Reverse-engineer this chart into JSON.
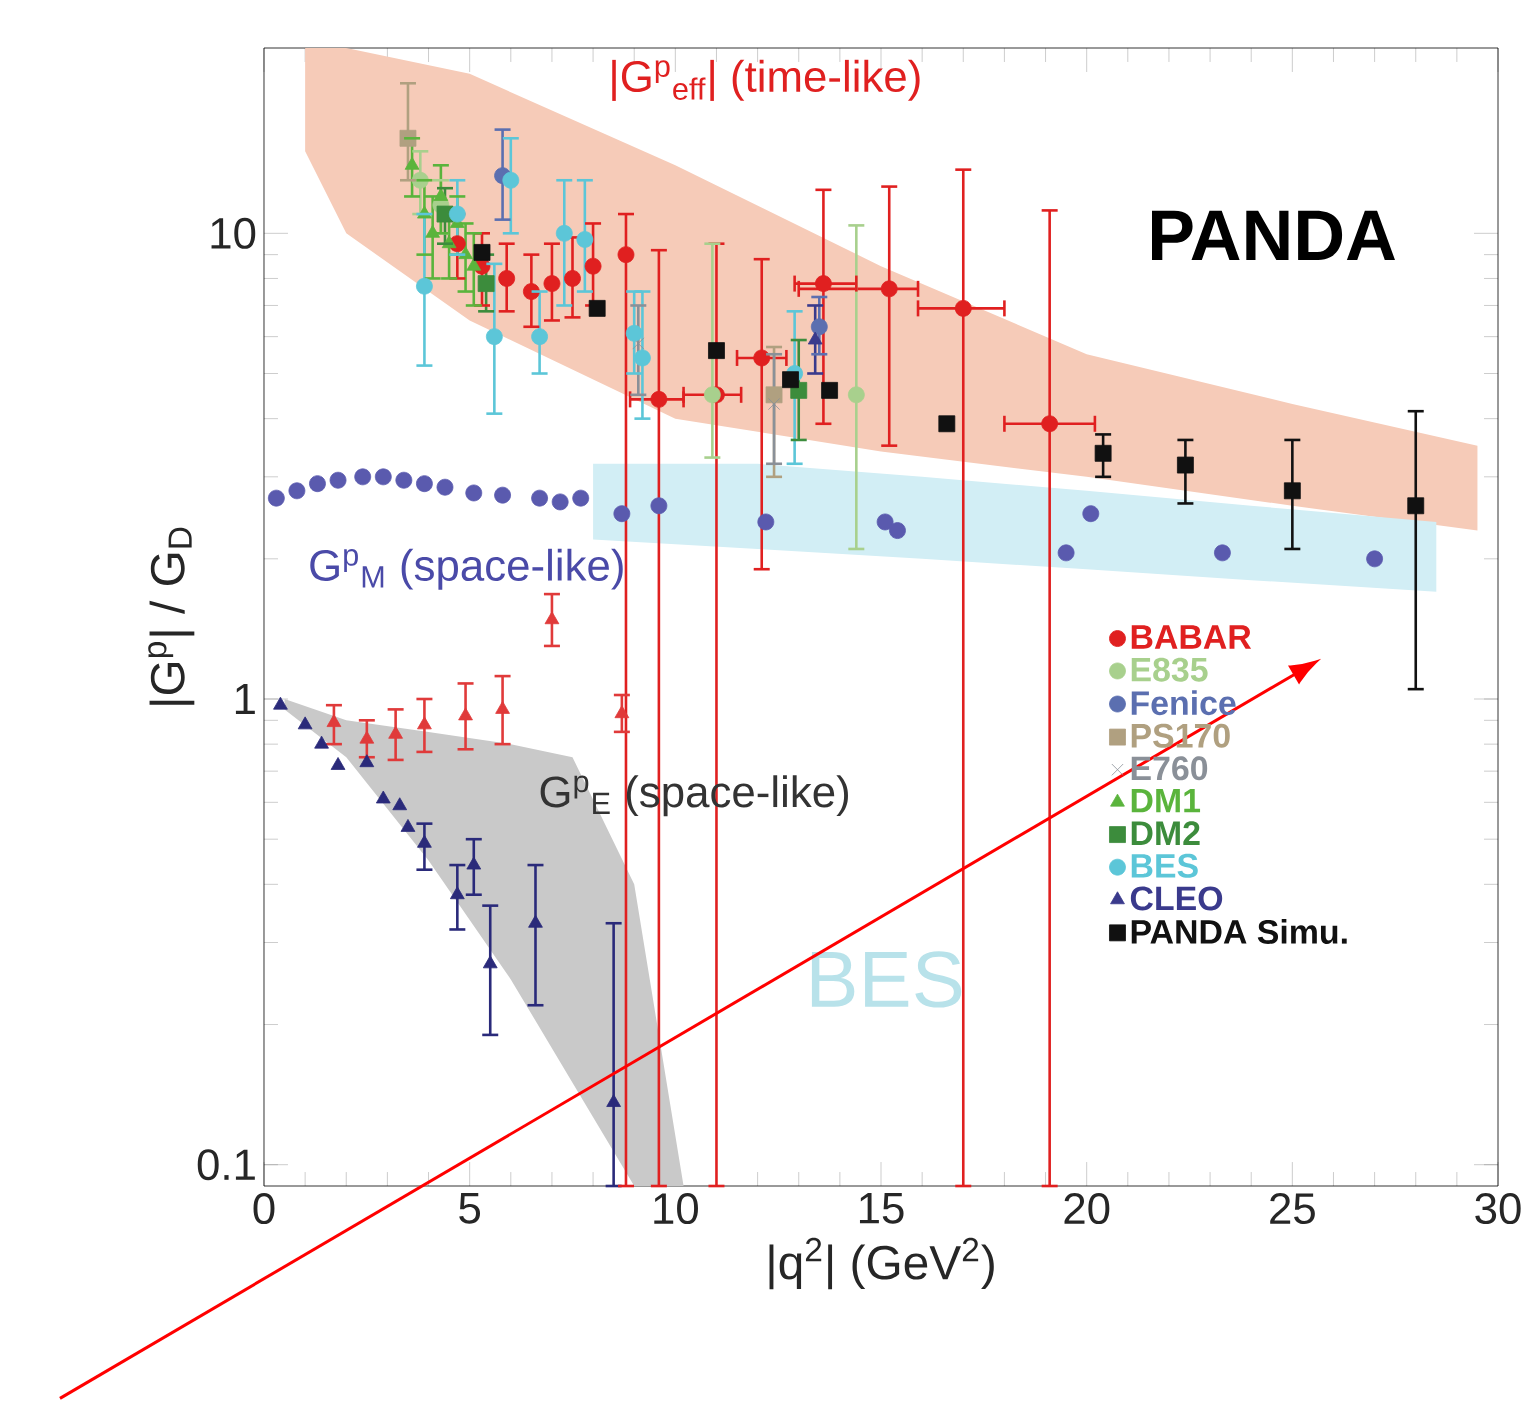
{
  "chart_data": {
    "type": "scatter",
    "xlabel": "|q$^{2}$| (GeV$^{2}$)",
    "ylabel": "|G$^{p}$| / G$_{D}$",
    "log": "y",
    "xlim": [
      0,
      30
    ],
    "ylim": [
      0.09,
      25
    ],
    "xticks": [
      0,
      5,
      10,
      15,
      20,
      25,
      30
    ],
    "yticks": [
      0.1,
      1,
      10
    ],
    "legend": "right",
    "annotations": [
      "|G$^{p}$$_{eff}$| (time-like)",
      "G$^{p}$$_{M}$ (space-like)",
      "G$^{p}$$_{E}$ (space-like)",
      "PANDA",
      "BES"
    ],
    "series": [
      {
        "type": "area",
        "color": "#f6cbb8",
        "x": [
          1,
          2,
          5,
          10,
          15,
          20,
          25,
          29.5
        ],
        "values": [
          null,
          null,
          null,
          null,
          null,
          null,
          null,
          null
        ],
        "upper": [
          25,
          25,
          22,
          14,
          8.5,
          5.5,
          4.3,
          3.5
        ],
        "lower": [
          15,
          10,
          6.5,
          4,
          3.4,
          3.0,
          2.6,
          2.3
        ]
      },
      {
        "type": "area",
        "color": "#d2eef5",
        "x": [
          8,
          12,
          16,
          20,
          24,
          28.5
        ],
        "values": [
          null,
          null,
          null,
          null,
          null,
          null
        ],
        "upper": [
          3.2,
          3.2,
          3.0,
          2.8,
          2.6,
          2.4
        ],
        "lower": [
          2.2,
          2.1,
          2.0,
          1.9,
          1.8,
          1.7
        ]
      },
      {
        "type": "area",
        "color": "#c9c9c9",
        "x": [
          0.5,
          2,
          4,
          6,
          7.5,
          9,
          10.2
        ],
        "values": [
          null,
          null,
          null,
          null,
          null,
          null,
          null
        ],
        "upper": [
          1.0,
          0.9,
          0.85,
          0.8,
          0.75,
          0.4,
          0.09
        ],
        "lower": [
          0.95,
          0.75,
          0.45,
          0.25,
          0.15,
          0.09,
          0.09
        ]
      },
      {
        "color": "#5a5aae",
        "marker": "circle",
        "x": [
          0.3,
          0.8,
          1.3,
          1.8,
          2.4,
          2.9,
          3.4,
          3.9,
          4.4,
          5.1,
          5.8,
          6.7,
          7.2,
          7.7,
          8.7,
          9.6,
          12.2,
          15.1,
          15.4,
          19.5,
          20.1,
          23.3,
          27.0
        ],
        "values": [
          2.7,
          2.8,
          2.9,
          2.95,
          3.0,
          3.0,
          2.95,
          2.9,
          2.85,
          2.77,
          2.74,
          2.7,
          2.65,
          2.7,
          2.5,
          2.6,
          2.4,
          2.4,
          2.3,
          2.06,
          2.5,
          2.06,
          2.0
        ]
      },
      {
        "color": "#e03a3a",
        "marker": "triangle",
        "x": [
          1.7,
          2.5,
          3.2,
          3.9,
          4.9,
          5.8,
          7.0,
          8.7
        ],
        "values": [
          0.89,
          0.82,
          0.84,
          0.88,
          0.92,
          0.95,
          1.48,
          0.93
        ],
        "errors": [
          [
            0.8,
            0.97
          ],
          [
            0.75,
            0.9
          ],
          [
            0.74,
            0.95
          ],
          [
            0.77,
            1.0
          ],
          [
            0.78,
            1.08
          ],
          [
            0.8,
            1.12
          ],
          [
            1.3,
            1.68
          ],
          [
            0.85,
            1.02
          ]
        ]
      },
      {
        "color": "#2a2a7a",
        "marker": "triangle",
        "x": [
          0.4,
          1.0,
          1.4,
          1.8,
          2.5,
          2.9,
          3.3,
          3.5,
          3.9,
          4.7,
          5.1,
          5.5,
          6.6,
          8.5
        ],
        "values": [
          0.97,
          0.88,
          0.8,
          0.72,
          0.73,
          0.61,
          0.59,
          0.53,
          0.49,
          0.38,
          0.44,
          0.27,
          0.33,
          0.136
        ],
        "errors": [
          null,
          null,
          null,
          null,
          null,
          null,
          null,
          null,
          [
            0.43,
            0.54
          ],
          [
            0.32,
            0.44
          ],
          [
            0.38,
            0.5
          ],
          [
            0.19,
            0.36
          ],
          [
            0.22,
            0.44
          ],
          [
            0.09,
            0.33
          ]
        ]
      },
      {
        "name": "BABAR",
        "color": "#e02020",
        "marker": "circle",
        "x": [
          4.7,
          5.3,
          5.9,
          6.5,
          7.0,
          7.5,
          8.0,
          8.8,
          9.6,
          11.0,
          12.1,
          13.6,
          15.2,
          17.0,
          19.1
        ],
        "values": [
          9.5,
          8.5,
          8.0,
          7.5,
          7.8,
          8.0,
          8.5,
          9.0,
          4.4,
          4.5,
          5.4,
          7.8,
          7.6,
          6.9,
          3.9
        ],
        "errors": [
          [
            8,
            11
          ],
          [
            7,
            10
          ],
          [
            6.8,
            9.5
          ],
          [
            6.3,
            9
          ],
          [
            6.5,
            9.5
          ],
          [
            6.6,
            9.8
          ],
          [
            7,
            10.5
          ],
          [
            0.09,
            11
          ],
          [
            0.09,
            9.2
          ],
          [
            0.09,
            9.5
          ],
          [
            1.9,
            8.8
          ],
          [
            3.9,
            12.4
          ],
          [
            3.5,
            12.6
          ],
          [
            0.09,
            13.7
          ],
          [
            0.09,
            11.2
          ]
        ],
        "xerrors": [
          null,
          null,
          null,
          null,
          null,
          null,
          null,
          null,
          [
            8.9,
            10.2
          ],
          [
            10.2,
            11.6
          ],
          [
            11.5,
            12.7
          ],
          [
            12.9,
            14.4
          ],
          [
            13.0,
            15.9
          ],
          [
            15.9,
            18.0
          ],
          [
            18.0,
            20.2
          ]
        ]
      },
      {
        "name": "E835",
        "color": "#a8d08d",
        "marker": "circle",
        "x": [
          3.8,
          4.3,
          10.9,
          14.4
        ],
        "values": [
          13,
          11.5,
          4.5,
          4.5
        ],
        "errors": [
          [
            11,
            15
          ],
          [
            10,
            13
          ],
          [
            3.3,
            9.5
          ],
          [
            2.1,
            10.4
          ]
        ]
      },
      {
        "name": "Fenice",
        "color": "#5b6fb0",
        "marker": "circle",
        "x": [
          5.8,
          13.5
        ],
        "values": [
          13.3,
          6.3
        ],
        "errors": [
          [
            10.7,
            16.7
          ],
          [
            5.5,
            7.3
          ]
        ]
      },
      {
        "name": "PS170",
        "color": "#b0a080",
        "marker": "square",
        "x": [
          3.5,
          12.4
        ],
        "values": [
          16,
          4.5
        ],
        "errors": [
          [
            13,
            21
          ],
          [
            3.0,
            5.7
          ]
        ]
      },
      {
        "name": "E760",
        "color": "#8a9098",
        "marker": "cross",
        "x": [
          9.1,
          12.4
        ],
        "values": [
          5.8,
          4.3
        ],
        "errors": [
          [
            4.5,
            7.0
          ],
          [
            3.2,
            5.5
          ]
        ]
      },
      {
        "name": "DM1",
        "color": "#5ab43c",
        "marker": "triangle",
        "x": [
          3.6,
          3.9,
          4.1,
          4.3,
          4.5,
          4.7,
          4.9,
          5.1
        ],
        "values": [
          14,
          11,
          10,
          12,
          9.5,
          10.5,
          9,
          8.5
        ],
        "errors": [
          [
            12,
            16
          ],
          [
            9,
            13
          ],
          [
            8,
            12
          ],
          [
            10,
            14
          ],
          [
            8,
            11
          ],
          [
            9,
            12
          ],
          [
            7.5,
            10.5
          ],
          [
            7,
            10
          ]
        ]
      },
      {
        "name": "DM2",
        "color": "#3c8c3c",
        "marker": "square",
        "x": [
          4.4,
          5.4,
          13.0
        ],
        "values": [
          11,
          7.8,
          4.6
        ],
        "errors": [
          [
            9.5,
            12.5
          ],
          [
            6.8,
            9
          ],
          [
            3.6,
            5.9
          ]
        ]
      },
      {
        "name": "BES",
        "color": "#5cc6d8",
        "marker": "circle",
        "x": [
          3.9,
          4.7,
          5.6,
          6.0,
          6.7,
          7.3,
          7.8,
          9.0,
          9.2,
          12.9
        ],
        "values": [
          7.7,
          11,
          6.0,
          13,
          6.0,
          10,
          9.7,
          6.1,
          5.4,
          5.0
        ],
        "errors": [
          [
            5.2,
            11
          ],
          [
            9,
            13
          ],
          [
            4.1,
            8.6
          ],
          [
            10,
            16
          ],
          [
            5,
            7.5
          ],
          [
            7,
            13
          ],
          [
            7.5,
            13
          ],
          [
            5,
            7.5
          ],
          [
            4,
            7.5
          ],
          [
            3.2,
            6.8
          ]
        ]
      },
      {
        "name": "CLEO",
        "color": "#3a3a8c",
        "marker": "triangle",
        "x": [
          13.4
        ],
        "values": [
          5.9
        ],
        "errors": [
          [
            5,
            7
          ]
        ]
      },
      {
        "name": "PANDA Simu.",
        "color": "#111111",
        "marker": "square",
        "x": [
          5.3,
          8.1,
          11.0,
          12.8,
          13.75,
          16.6,
          20.4,
          22.4,
          25.0,
          28.0
        ],
        "values": [
          9.1,
          6.9,
          5.6,
          4.85,
          4.6,
          3.9,
          3.37,
          3.18,
          2.8,
          2.6
        ],
        "errors": [
          null,
          null,
          null,
          null,
          null,
          null,
          [
            3.0,
            3.7
          ],
          [
            2.63,
            3.6
          ],
          [
            2.1,
            3.6
          ],
          [
            1.05,
            4.15
          ]
        ]
      }
    ]
  }
}
